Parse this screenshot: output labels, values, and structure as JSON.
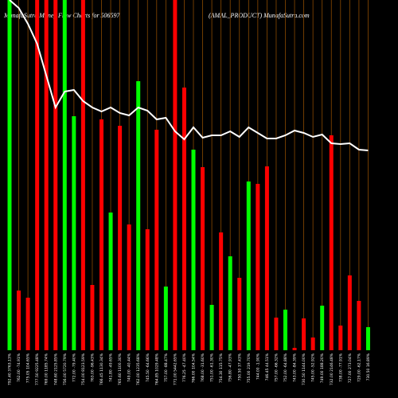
{
  "chart_data": {
    "type": "bar",
    "title": "MunafaSutra  Money Flow  Charts for 506597",
    "subtitle": "(AMAL_PRODUCT) MunafaSutra.com",
    "categories": [
      "792.40 3763.13%",
      "762.00 -74.91%",
      "775.05 104.65%",
      "777.50 9225.48%",
      "769.00 1185.74%",
      "748.60 2125.85%",
      "756.00 5720.79%",
      "772.00 -79.40%",
      "754.00 8123.59%",
      "763.00 -96.43%",
      "766.45 1130.34%",
      "741.80 -49.65%",
      "765.60 1100.30%",
      "749.00 -40.44%",
      "762.00 1235.68%",
      "745.50 -64.66%",
      "764.85 1029.48%",
      "757.00 -88.47%",
      "771.00 5442.65%",
      "776.25 -47.40%",
      "766.00 104.54%",
      "768.00 -31.60%",
      "751.00 -61.30%",
      "754.30 115.75%",
      "756.80 -47.93%",
      "750.50 37.43%",
      "755.00 219.70%",
      "744.00 -1.90%",
      "746.45 44.51%",
      "757.00 -66.32%",
      "752.00 -64.88%",
      "743.00 -84.39%",
      "730.50 1144.00%",
      "745.00 -52.92%",
      "749.00 188.20%",
      "732.00 2146.48%",
      "738.00 -77.91%",
      "727.00 273.04%",
      "729.00 -62.17%",
      "730.50 16.89%"
    ],
    "values": [
      440,
      75,
      66,
      440,
      440,
      440,
      440,
      294,
      440,
      82,
      290,
      173,
      282,
      158,
      338,
      152,
      277,
      80,
      440,
      330,
      252,
      230,
      57,
      148,
      118,
      91,
      212,
      209,
      231,
      41,
      51,
      3,
      40,
      16,
      56,
      270,
      31,
      94,
      62,
      29
    ],
    "bar_colors": [
      "#00ff00",
      "#ff0000",
      "#ff0000",
      "#ff0000",
      "#ff0000",
      "#ff0000",
      "#00ff00",
      "#00ff00",
      "#ff0000",
      "#ff0000",
      "#ff0000",
      "#00ff00",
      "#ff0000",
      "#ff0000",
      "#00ff00",
      "#ff0000",
      "#ff0000",
      "#00ff00",
      "#ff0000",
      "#ff0000",
      "#00ff00",
      "#ff0000",
      "#00ff00",
      "#ff0000",
      "#00ff00",
      "#ff0000",
      "#00ff00",
      "#ff0000",
      "#ff0000",
      "#ff0000",
      "#00ff00",
      "#ff0000",
      "#ff0000",
      "#ff0000",
      "#00ff00",
      "#ff0000",
      "#ff0000",
      "#ff0000",
      "#ff0000",
      "#00ff00"
    ],
    "line_values": [
      440,
      430,
      410,
      385,
      345,
      305,
      325,
      327,
      313,
      305,
      300,
      305,
      298,
      295,
      305,
      301,
      290,
      292,
      275,
      265,
      280,
      267,
      270,
      270,
      275,
      268,
      280,
      273,
      266,
      266,
      270,
      276,
      273,
      268,
      271,
      260,
      259,
      260,
      252,
      251
    ],
    "line_color": "#ffffff",
    "gridline_color": "#8b4a00",
    "ylim": [
      0,
      440
    ]
  }
}
